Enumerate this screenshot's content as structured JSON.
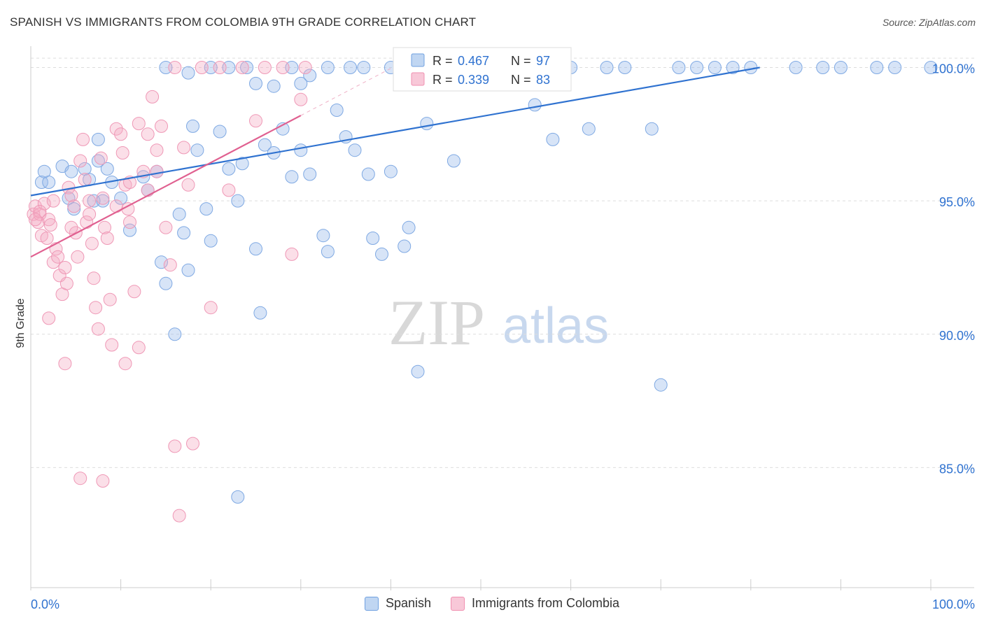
{
  "header": {
    "title": "SPANISH VS IMMIGRANTS FROM COLOMBIA 9TH GRADE CORRELATION CHART",
    "source": "Source: ZipAtlas.com"
  },
  "watermark": {
    "zip": "ZIP",
    "atlas": "atlas"
  },
  "legend_box": {
    "rows": [
      {
        "r_label": "R = ",
        "r_value": "0.467",
        "n_label": "N = ",
        "n_value": "97"
      },
      {
        "r_label": "R = ",
        "r_value": "0.339",
        "n_label": "N = ",
        "n_value": "83"
      }
    ]
  },
  "chart_data": {
    "type": "scatter",
    "title": "SPANISH VS IMMIGRANTS FROM COLOMBIA 9TH GRADE CORRELATION CHART",
    "xlabel": "",
    "ylabel": "9th Grade",
    "xlim": [
      0,
      100
    ],
    "ylim": [
      80.5,
      100.8
    ],
    "x_tick_labels": [
      {
        "value": 0,
        "label": "0.0%"
      },
      {
        "value": 100,
        "label": "100.0%"
      }
    ],
    "y_tick_labels": [
      {
        "value": 85,
        "label": "85.0%"
      },
      {
        "value": 90,
        "label": "90.0%"
      },
      {
        "value": 95,
        "label": "95.0%"
      },
      {
        "value": 100,
        "label": "100.0%"
      }
    ],
    "grid": true,
    "legend_position": "top-center",
    "colors": {
      "spanish": "#6fa0e0",
      "colombia": "#f08fb0",
      "spanish_line": "#2f72d0",
      "colombia_line": "#e06090"
    },
    "series": [
      {
        "name": "Spanish",
        "r": 0.467,
        "n": 97,
        "trend": {
          "x0": 0,
          "y0": 95.2,
          "x1": 81,
          "y1": 100
        },
        "points": [
          [
            1.2,
            95.7
          ],
          [
            2.0,
            95.7
          ],
          [
            1.5,
            96.1
          ],
          [
            3.5,
            96.3
          ],
          [
            4.5,
            96.1
          ],
          [
            6.0,
            96.2
          ],
          [
            7.5,
            96.5
          ],
          [
            8.5,
            96.2
          ],
          [
            4.2,
            95.1
          ],
          [
            4.8,
            94.7
          ],
          [
            6.5,
            95.8
          ],
          [
            7.0,
            95.0
          ],
          [
            8.0,
            95.0
          ],
          [
            9.0,
            95.7
          ],
          [
            10.0,
            95.1
          ],
          [
            11.0,
            93.9
          ],
          [
            12.5,
            95.9
          ],
          [
            13.0,
            95.4
          ],
          [
            14.0,
            96.1
          ],
          [
            7.5,
            97.3
          ],
          [
            14.5,
            92.7
          ],
          [
            15.0,
            91.9
          ],
          [
            16.0,
            90.0
          ],
          [
            16.5,
            94.5
          ],
          [
            17.0,
            93.8
          ],
          [
            17.5,
            92.4
          ],
          [
            18.0,
            97.8
          ],
          [
            18.5,
            96.9
          ],
          [
            19.5,
            94.7
          ],
          [
            20.0,
            93.5
          ],
          [
            21.0,
            97.6
          ],
          [
            22.0,
            96.2
          ],
          [
            23.0,
            95.0
          ],
          [
            23.5,
            96.4
          ],
          [
            25.0,
            93.2
          ],
          [
            25.5,
            90.8
          ],
          [
            26.0,
            97.1
          ],
          [
            27.0,
            96.8
          ],
          [
            28.0,
            97.7
          ],
          [
            29.0,
            95.9
          ],
          [
            30.0,
            96.9
          ],
          [
            31.0,
            96.0
          ],
          [
            32.5,
            93.7
          ],
          [
            33.0,
            93.1
          ],
          [
            34.0,
            98.4
          ],
          [
            35.0,
            97.4
          ],
          [
            36.0,
            96.9
          ],
          [
            37.5,
            96.0
          ],
          [
            38.0,
            93.6
          ],
          [
            39.0,
            93.0
          ],
          [
            40.0,
            96.1
          ],
          [
            41.5,
            93.3
          ],
          [
            42.0,
            94.0
          ],
          [
            43.0,
            88.6
          ],
          [
            44.0,
            97.9
          ],
          [
            45.0,
            100.0
          ],
          [
            47.0,
            96.5
          ],
          [
            48.0,
            100.0
          ],
          [
            50.0,
            100.0
          ],
          [
            52.0,
            100.0
          ],
          [
            54.0,
            100.0
          ],
          [
            56.0,
            98.6
          ],
          [
            58.0,
            97.3
          ],
          [
            60.0,
            100.0
          ],
          [
            62.0,
            97.7
          ],
          [
            64.0,
            100.0
          ],
          [
            66.0,
            100.0
          ],
          [
            69.0,
            97.7
          ],
          [
            70.0,
            88.1
          ],
          [
            72.0,
            100.0
          ],
          [
            74.0,
            100.0
          ],
          [
            76.0,
            100.0
          ],
          [
            78.0,
            100.0
          ],
          [
            80.0,
            100.0
          ],
          [
            85.0,
            100.0
          ],
          [
            88.0,
            100.0
          ],
          [
            90.0,
            100.0
          ],
          [
            94.0,
            100.0
          ],
          [
            96.0,
            100.0
          ],
          [
            100.0,
            100.0
          ],
          [
            15.0,
            100.0
          ],
          [
            17.5,
            99.8
          ],
          [
            20.0,
            100.0
          ],
          [
            22.0,
            100.0
          ],
          [
            24.0,
            100.0
          ],
          [
            25.0,
            99.4
          ],
          [
            27.0,
            99.3
          ],
          [
            29.0,
            100.0
          ],
          [
            31.0,
            99.7
          ],
          [
            33.0,
            100.0
          ],
          [
            35.5,
            100.0
          ],
          [
            37.0,
            100.0
          ],
          [
            40.0,
            100.0
          ],
          [
            42.5,
            100.0
          ],
          [
            46.0,
            100.0
          ],
          [
            30.0,
            99.4
          ],
          [
            23.0,
            83.9
          ]
        ]
      },
      {
        "name": "Immigrants from Colombia",
        "r": 0.339,
        "n": 83,
        "trend": {
          "x0": 0,
          "y0": 92.9,
          "x1": 30,
          "y1": 98.2
        },
        "points": [
          [
            0.3,
            94.5
          ],
          [
            0.5,
            94.8
          ],
          [
            0.8,
            94.2
          ],
          [
            1.0,
            94.5
          ],
          [
            1.2,
            93.7
          ],
          [
            1.5,
            94.9
          ],
          [
            1.8,
            93.6
          ],
          [
            2.0,
            94.3
          ],
          [
            2.2,
            94.1
          ],
          [
            2.5,
            92.7
          ],
          [
            2.8,
            93.2
          ],
          [
            3.0,
            92.9
          ],
          [
            3.2,
            92.2
          ],
          [
            3.5,
            91.5
          ],
          [
            3.8,
            92.5
          ],
          [
            4.0,
            91.9
          ],
          [
            4.2,
            95.5
          ],
          [
            4.5,
            95.2
          ],
          [
            4.8,
            94.8
          ],
          [
            5.0,
            93.8
          ],
          [
            5.2,
            92.9
          ],
          [
            5.5,
            96.5
          ],
          [
            5.8,
            97.3
          ],
          [
            6.0,
            95.8
          ],
          [
            6.2,
            94.2
          ],
          [
            6.5,
            94.5
          ],
          [
            6.8,
            93.4
          ],
          [
            7.0,
            92.1
          ],
          [
            7.2,
            91.0
          ],
          [
            7.5,
            90.2
          ],
          [
            7.8,
            96.6
          ],
          [
            8.0,
            95.1
          ],
          [
            8.2,
            94.0
          ],
          [
            8.5,
            93.6
          ],
          [
            8.8,
            91.3
          ],
          [
            9.0,
            89.6
          ],
          [
            9.5,
            97.7
          ],
          [
            10.0,
            97.5
          ],
          [
            10.2,
            96.8
          ],
          [
            10.5,
            95.6
          ],
          [
            10.8,
            94.7
          ],
          [
            11.0,
            94.2
          ],
          [
            11.5,
            91.6
          ],
          [
            12.0,
            89.5
          ],
          [
            12.5,
            96.1
          ],
          [
            13.0,
            95.4
          ],
          [
            13.5,
            98.9
          ],
          [
            14.0,
            96.1
          ],
          [
            14.5,
            97.8
          ],
          [
            15.0,
            94.0
          ],
          [
            15.5,
            92.6
          ],
          [
            16.0,
            85.8
          ],
          [
            16.5,
            83.2
          ],
          [
            17.0,
            97.0
          ],
          [
            17.5,
            95.6
          ],
          [
            18.0,
            85.9
          ],
          [
            19.0,
            100.0
          ],
          [
            20.0,
            91.0
          ],
          [
            21.0,
            100.0
          ],
          [
            22.0,
            95.4
          ],
          [
            23.5,
            100.0
          ],
          [
            25.0,
            98.0
          ],
          [
            26.0,
            100.0
          ],
          [
            28.0,
            100.0
          ],
          [
            29.0,
            93.0
          ],
          [
            30.0,
            98.8
          ],
          [
            30.5,
            100.0
          ],
          [
            2.0,
            90.6
          ],
          [
            3.8,
            88.9
          ],
          [
            5.5,
            84.6
          ],
          [
            8.0,
            84.5
          ],
          [
            10.5,
            88.9
          ],
          [
            12.0,
            97.9
          ],
          [
            14.0,
            96.9
          ],
          [
            9.5,
            94.8
          ],
          [
            6.5,
            95.0
          ],
          [
            4.5,
            94.0
          ],
          [
            2.5,
            95.0
          ],
          [
            1.0,
            94.6
          ],
          [
            0.5,
            94.3
          ],
          [
            11.0,
            95.7
          ],
          [
            13.0,
            97.5
          ],
          [
            16.0,
            100.0
          ]
        ]
      }
    ]
  }
}
